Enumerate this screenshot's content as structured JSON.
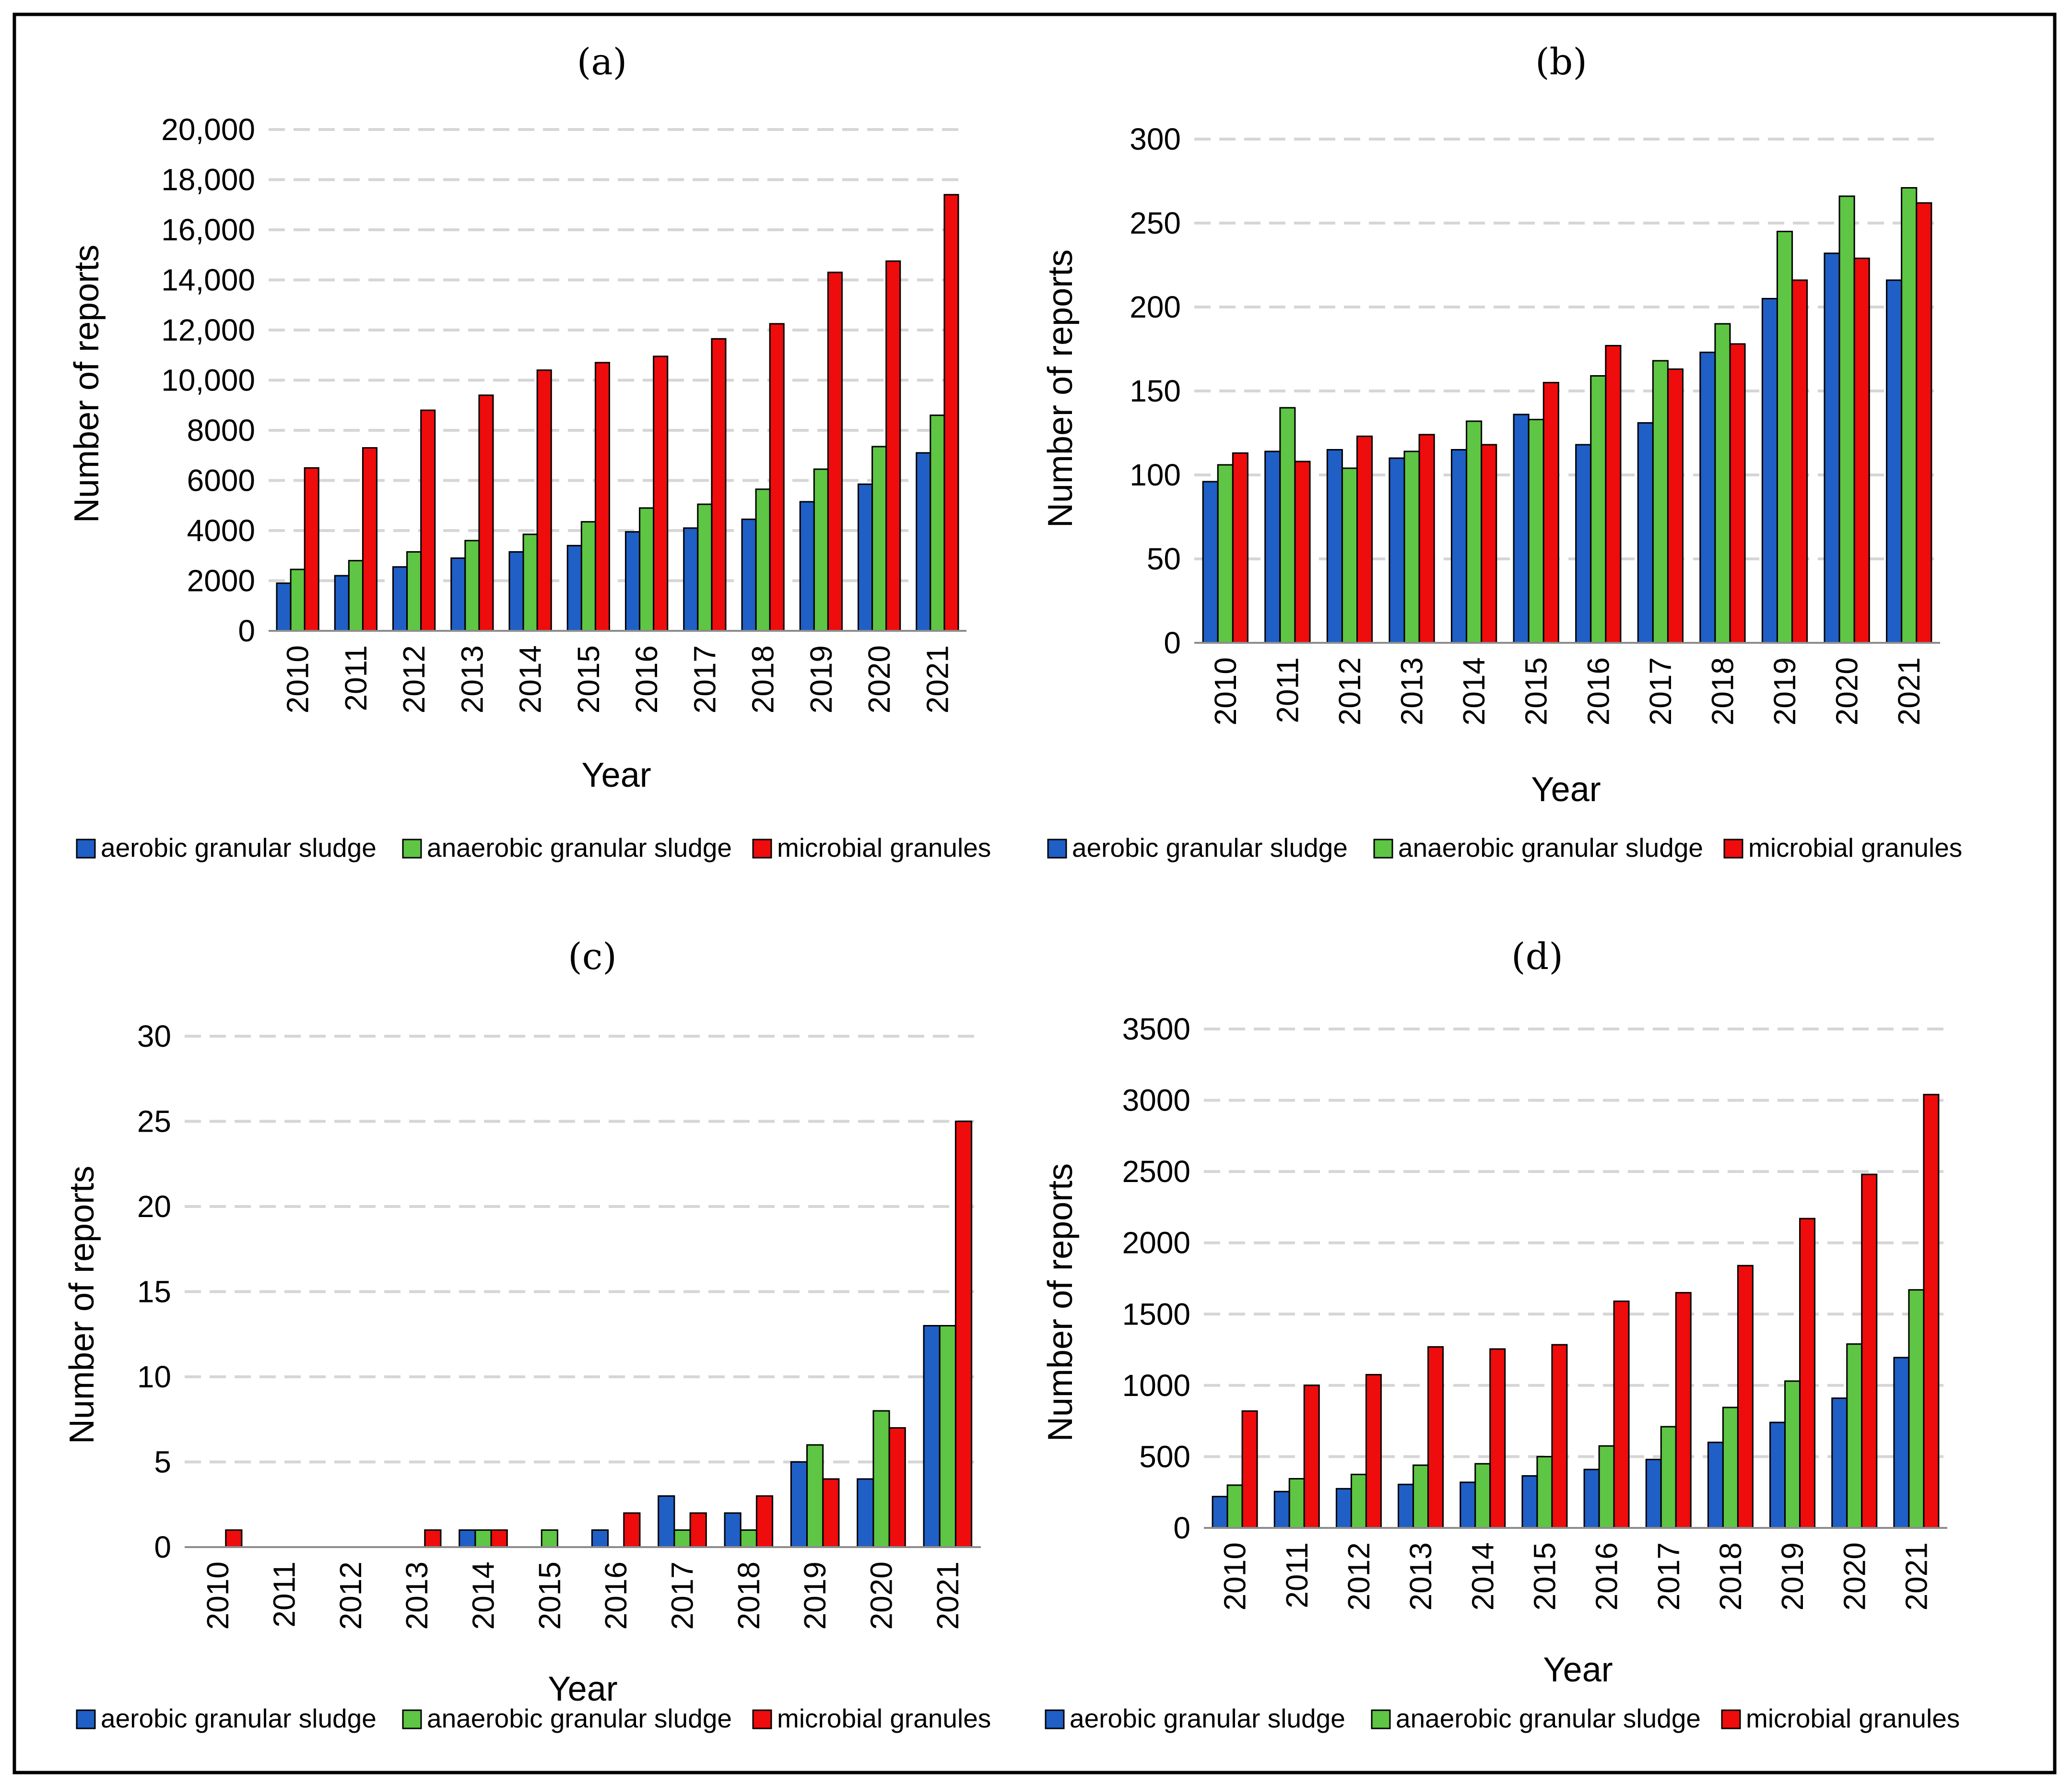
{
  "chart_data": [
    {
      "panel_label": "(a)",
      "type": "bar",
      "categories": [
        "2010",
        "2011",
        "2012",
        "2013",
        "2014",
        "2015",
        "2016",
        "2017",
        "2018",
        "2019",
        "2020",
        "2021"
      ],
      "series": [
        {
          "name": "aerobic granular sludge",
          "values": [
            1900,
            2200,
            2550,
            2900,
            3150,
            3400,
            3950,
            4100,
            4450,
            5150,
            5850,
            7100
          ]
        },
        {
          "name": "anaerobic granular sludge",
          "values": [
            2450,
            2800,
            3150,
            3600,
            3850,
            4350,
            4900,
            5050,
            5650,
            6450,
            7350,
            8600
          ]
        },
        {
          "name": "microbial granules",
          "values": [
            6500,
            7300,
            8800,
            9400,
            10400,
            10700,
            10950,
            11650,
            12250,
            14300,
            14750,
            17400
          ]
        }
      ],
      "xlabel": "Year",
      "ylabel": "Number of reports",
      "ylim": [
        0,
        20000
      ],
      "yticks": [
        "0",
        "2000",
        "4000",
        "6000",
        "8000",
        "10,000",
        "12,000",
        "14,000",
        "16,000",
        "18,000",
        "20,000"
      ],
      "grid": true,
      "legend_position": "bottom"
    },
    {
      "panel_label": "(b)",
      "type": "bar",
      "categories": [
        "2010",
        "2011",
        "2012",
        "2013",
        "2014",
        "2015",
        "2016",
        "2017",
        "2018",
        "2019",
        "2020",
        "2021"
      ],
      "series": [
        {
          "name": "aerobic granular sludge",
          "values": [
            96,
            114,
            115,
            110,
            115,
            136,
            118,
            131,
            173,
            205,
            232,
            216
          ]
        },
        {
          "name": "anaerobic granular sludge",
          "values": [
            106,
            140,
            104,
            114,
            132,
            133,
            159,
            168,
            190,
            245,
            266,
            271
          ]
        },
        {
          "name": "microbial granules",
          "values": [
            113,
            108,
            123,
            124,
            118,
            155,
            177,
            163,
            178,
            216,
            229,
            262
          ]
        }
      ],
      "xlabel": "Year",
      "ylabel": "Number of reports",
      "ylim": [
        0,
        300
      ],
      "yticks": [
        "0",
        "50",
        "100",
        "150",
        "200",
        "250",
        "300"
      ],
      "grid": true,
      "legend_position": "bottom"
    },
    {
      "panel_label": "(c)",
      "type": "bar",
      "categories": [
        "2010",
        "2011",
        "2012",
        "2013",
        "2014",
        "2015",
        "2016",
        "2017",
        "2018",
        "2019",
        "2020",
        "2021"
      ],
      "series": [
        {
          "name": "aerobic granular sludge",
          "values": [
            0,
            0,
            0,
            0,
            1,
            0,
            1,
            3,
            2,
            5,
            4,
            13
          ]
        },
        {
          "name": "anaerobic granular sludge",
          "values": [
            0,
            0,
            0,
            0,
            1,
            1,
            0,
            1,
            1,
            6,
            8,
            13
          ]
        },
        {
          "name": "microbial granules",
          "values": [
            1,
            0,
            0,
            1,
            1,
            0,
            2,
            2,
            3,
            4,
            7,
            25
          ]
        }
      ],
      "xlabel": "Year",
      "ylabel": "Number of reports",
      "ylim": [
        0,
        30
      ],
      "yticks": [
        "0",
        "5",
        "10",
        "15",
        "20",
        "25",
        "30"
      ],
      "grid": true,
      "legend_position": "bottom"
    },
    {
      "panel_label": "(d)",
      "type": "bar",
      "categories": [
        "2010",
        "2011",
        "2012",
        "2013",
        "2014",
        "2015",
        "2016",
        "2017",
        "2018",
        "2019",
        "2020",
        "2021"
      ],
      "series": [
        {
          "name": "aerobic granular sludge",
          "values": [
            220,
            255,
            275,
            305,
            320,
            365,
            410,
            480,
            600,
            740,
            910,
            1195
          ]
        },
        {
          "name": "anaerobic granular sludge",
          "values": [
            300,
            345,
            375,
            440,
            450,
            500,
            575,
            710,
            845,
            1030,
            1290,
            1670
          ]
        },
        {
          "name": "microbial granules",
          "values": [
            820,
            1000,
            1075,
            1270,
            1255,
            1285,
            1590,
            1650,
            1840,
            2170,
            2480,
            3040
          ]
        }
      ],
      "xlabel": "Year",
      "ylabel": "Number of reports",
      "ylim": [
        0,
        3500
      ],
      "yticks": [
        "0",
        "500",
        "1000",
        "1500",
        "2000",
        "2500",
        "3000",
        "3500"
      ],
      "grid": true,
      "legend_position": "bottom"
    }
  ],
  "colors": {
    "aerobic granular sludge": "#1f5fc6",
    "anaerobic granular sludge": "#5fc544",
    "microbial granules": "#ee0c0c",
    "grid": "#d6d6d6",
    "axis": "#8c8c8c"
  }
}
